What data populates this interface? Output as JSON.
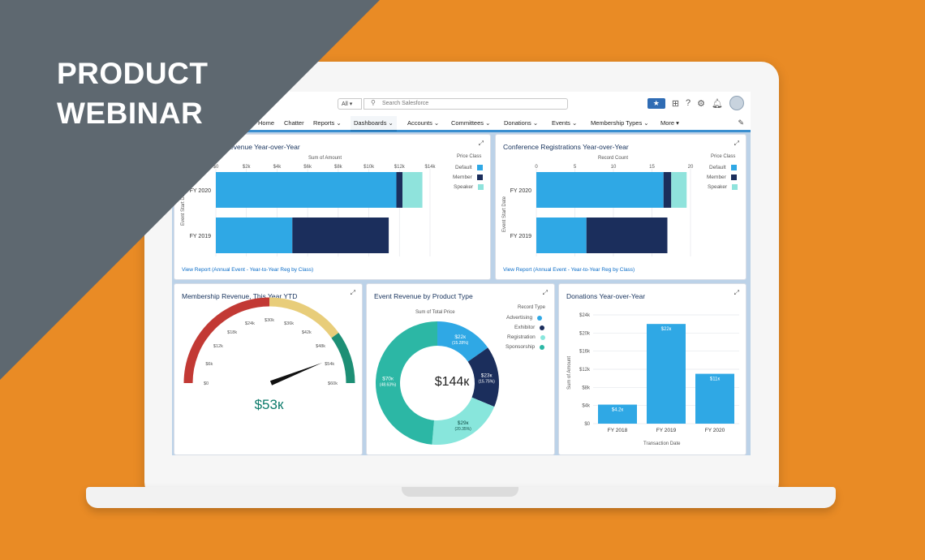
{
  "banner": {
    "line1": "PRODUCT",
    "line2": "WEBINAR"
  },
  "search": {
    "scope": "All ▾",
    "placeholder": "Search Salesforce"
  },
  "nav": {
    "items": [
      "Home",
      "Chatter",
      "Reports ⌄",
      "Dashboards ⌄",
      "Accounts ⌄",
      "Committees ⌄",
      "Donations ⌄",
      "Events ⌄",
      "Membership Types ⌄",
      "More ▾"
    ],
    "active": "Dashboards ⌄"
  },
  "cards": {
    "annual": {
      "title": "Annual Event Revenue Year-over-Year",
      "axis_title": "Sum of Amount",
      "ticks": [
        "$0",
        "$2k",
        "$4k",
        "$6k",
        "$8k",
        "$10k",
        "$12k",
        "$14k"
      ],
      "rows": [
        "FY 2020",
        "FY 2019"
      ],
      "y_axis": "Event Start Date",
      "legend_title": "Price Class",
      "legend": [
        "Default",
        "Member",
        "Speaker"
      ],
      "view_report": "View Report (Annual Event - Year-to-Year Reg by Class)"
    },
    "conference": {
      "title": "Conference Registrations Year-over-Year",
      "axis_title": "Record Count",
      "ticks": [
        "0",
        "5",
        "10",
        "15",
        "20"
      ],
      "rows": [
        "FY 2020",
        "FY 2019"
      ],
      "y_axis": "Event Start Date",
      "legend_title": "Price Class",
      "legend": [
        "Default",
        "Member",
        "Speaker"
      ],
      "view_report": "View Report (Annual Event - Year-to-Year Reg by Class)"
    },
    "membership": {
      "title": "Membership Revenue, This Year YTD",
      "value": "$53к",
      "ticks": [
        "$0",
        "$6k",
        "$12k",
        "$18k",
        "$24k",
        "$30k",
        "$36k",
        "$42k",
        "$48k",
        "$54k",
        "$60k"
      ]
    },
    "event_product": {
      "title": "Event Revenue by Product Type",
      "axis_title": "Sum of Total Price",
      "center": "$144к",
      "legend_title": "Record Type",
      "legend": [
        "Advertising",
        "Exhibitor",
        "Registration",
        "Sponsorship"
      ],
      "labels": [
        {
          "value": "$22к",
          "pct": "(15.28%)"
        },
        {
          "value": "$23к",
          "pct": "(15.75%)"
        },
        {
          "value": "$29к",
          "pct": "(20.35%)"
        },
        {
          "value": "$70к",
          "pct": "(48.63%)"
        }
      ]
    },
    "donations": {
      "title": "Donations Year-over-Year",
      "y_axis": "Sum of Amount",
      "x_axis": "Transaction Date",
      "y_ticks": [
        "$0",
        "$4k",
        "$8k",
        "$12k",
        "$16k",
        "$20k",
        "$24k"
      ],
      "bar_labels": [
        "$4.2к",
        "$22к",
        "$11к"
      ],
      "categories": [
        "FY 2018",
        "FY 2019",
        "FY 2020"
      ]
    }
  },
  "chart_data": [
    {
      "type": "bar",
      "orientation": "horizontal",
      "stacked": true,
      "title": "Annual Event Revenue Year-over-Year",
      "xlabel": "Sum of Amount",
      "ylabel": "Event Start Date",
      "categories": [
        "FY 2020",
        "FY 2019"
      ],
      "xlim": [
        0,
        14000
      ],
      "series": [
        {
          "name": "Default",
          "values": [
            11800,
            5000
          ]
        },
        {
          "name": "Member",
          "values": [
            400,
            6300
          ]
        },
        {
          "name": "Speaker",
          "values": [
            1300,
            0
          ]
        }
      ],
      "colors": {
        "Default": "#2fa8e5",
        "Member": "#1b2e5c",
        "Speaker": "#8fe3dc"
      },
      "legend": "right"
    },
    {
      "type": "bar",
      "orientation": "horizontal",
      "stacked": true,
      "title": "Conference Registrations Year-over-Year",
      "xlabel": "Record Count",
      "ylabel": "Event Start Date",
      "categories": [
        "FY 2020",
        "FY 2019"
      ],
      "xlim": [
        0,
        20
      ],
      "series": [
        {
          "name": "Default",
          "values": [
            16.5,
            6.5
          ]
        },
        {
          "name": "Member",
          "values": [
            1.0,
            10.5
          ]
        },
        {
          "name": "Speaker",
          "values": [
            2.0,
            0
          ]
        }
      ],
      "colors": {
        "Default": "#2fa8e5",
        "Member": "#1b2e5c",
        "Speaker": "#8fe3dc"
      },
      "legend": "right"
    },
    {
      "type": "gauge",
      "title": "Membership Revenue, This Year YTD",
      "value": 53000,
      "range": [
        0,
        60000
      ],
      "bands": [
        {
          "from": 0,
          "to": 30000,
          "color": "#c23934"
        },
        {
          "from": 30000,
          "to": 48000,
          "color": "#e8cd7a"
        },
        {
          "from": 48000,
          "to": 60000,
          "color": "#1d8f75"
        }
      ]
    },
    {
      "type": "pie",
      "donut": true,
      "title": "Event Revenue by Product Type",
      "categories": [
        "Advertising",
        "Exhibitor",
        "Registration",
        "Sponsorship"
      ],
      "values": [
        22,
        23,
        29,
        70
      ],
      "percent": [
        15.28,
        15.75,
        20.35,
        48.63
      ],
      "colors": [
        "#2fa8e5",
        "#1b2e5c",
        "#88e6dc",
        "#2cb7a5"
      ],
      "total": "$144к"
    },
    {
      "type": "bar",
      "title": "Donations Year-over-Year",
      "categories": [
        "FY 2018",
        "FY 2019",
        "FY 2020"
      ],
      "values": [
        4.2,
        22,
        11
      ],
      "ylim": [
        0,
        24
      ],
      "xlabel": "Transaction Date",
      "ylabel": "Sum of Amount",
      "color": "#2fa8e5"
    }
  ]
}
